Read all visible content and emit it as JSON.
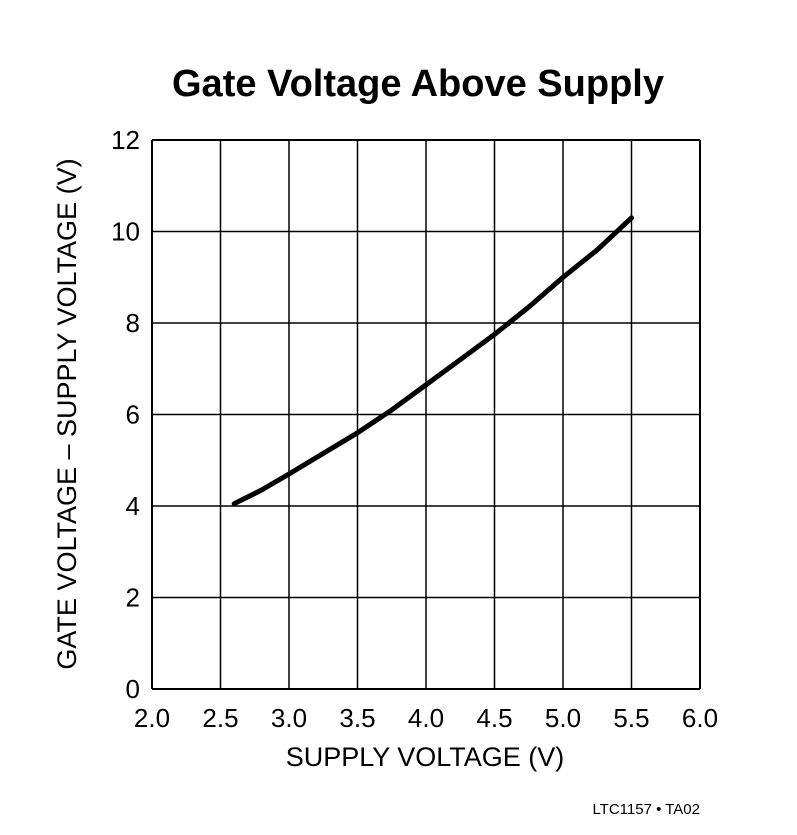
{
  "chart_data": {
    "type": "line",
    "title": "Gate Voltage Above Supply",
    "xlabel": "SUPPLY VOLTAGE (V)",
    "ylabel": "GATE VOLTAGE – SUPPLY VOLTAGE (V)",
    "xlim": [
      2.0,
      6.0
    ],
    "ylim": [
      0,
      12
    ],
    "x_ticks": [
      "2.0",
      "2.5",
      "3.0",
      "3.5",
      "4.0",
      "4.5",
      "5.0",
      "5.5",
      "6.0"
    ],
    "y_ticks": [
      "0",
      "2",
      "4",
      "6",
      "8",
      "10",
      "12"
    ],
    "grid": true,
    "series": [
      {
        "x": [
          2.6,
          2.8,
          3.0,
          3.25,
          3.5,
          3.75,
          4.0,
          4.25,
          4.5,
          4.75,
          5.0,
          5.25,
          5.5
        ],
        "y": [
          4.05,
          4.35,
          4.7,
          5.15,
          5.6,
          6.1,
          6.65,
          7.2,
          7.75,
          8.35,
          9.0,
          9.6,
          10.3
        ]
      }
    ],
    "colors": {
      "line": "#000000",
      "grid": "#000000"
    }
  },
  "footnote": "LTC1157 • TA02"
}
